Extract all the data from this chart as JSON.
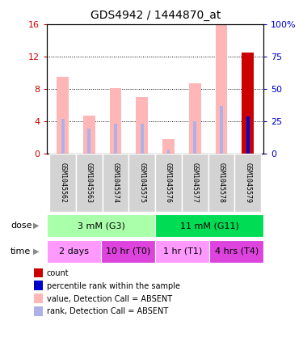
{
  "title": "GDS4942 / 1444870_at",
  "samples": [
    "GSM1045562",
    "GSM1045563",
    "GSM1045574",
    "GSM1045575",
    "GSM1045576",
    "GSM1045577",
    "GSM1045578",
    "GSM1045579"
  ],
  "pink_values": [
    9.5,
    4.7,
    8.1,
    7.0,
    1.8,
    8.7,
    16.0,
    0.0
  ],
  "blue_rank_values": [
    4.3,
    3.1,
    3.7,
    3.7,
    0.55,
    4.0,
    5.9,
    0.0
  ],
  "red_count_value": 12.5,
  "red_count_index": 7,
  "blue_percentile_value": 4.6,
  "blue_percentile_index": 7,
  "ylim_left": [
    0,
    16
  ],
  "ylim_right": [
    0,
    100
  ],
  "yticks_left": [
    0,
    4,
    8,
    12,
    16
  ],
  "yticks_right": [
    0,
    25,
    50,
    75,
    100
  ],
  "ytick_labels_right": [
    "0",
    "25",
    "50",
    "75",
    "100%"
  ],
  "dose_groups": [
    {
      "label": "3 mM (G3)",
      "start": 0,
      "end": 4,
      "color": "#aaffaa"
    },
    {
      "label": "11 mM (G11)",
      "start": 4,
      "end": 8,
      "color": "#00dd55"
    }
  ],
  "time_groups": [
    {
      "label": "2 days",
      "start": 0,
      "end": 2,
      "color": "#ff99ff"
    },
    {
      "label": "10 hr (T0)",
      "start": 2,
      "end": 4,
      "color": "#dd44dd"
    },
    {
      "label": "1 hr (T1)",
      "start": 4,
      "end": 6,
      "color": "#ff99ff"
    },
    {
      "label": "4 hrs (T4)",
      "start": 6,
      "end": 8,
      "color": "#dd44dd"
    }
  ],
  "legend_items": [
    {
      "color": "#cc0000",
      "label": "count"
    },
    {
      "color": "#0000cc",
      "label": "percentile rank within the sample"
    },
    {
      "color": "#ffb6b6",
      "label": "value, Detection Call = ABSENT"
    },
    {
      "color": "#b0b0e8",
      "label": "rank, Detection Call = ABSENT"
    }
  ],
  "pink_bar_width": 0.45,
  "blue_bar_width": 0.12,
  "pink_color": "#ffb6b6",
  "blue_color": "#b0b0e8",
  "red_color": "#cc0000",
  "dark_blue_color": "#0000cc",
  "bg_color": "#ffffff",
  "tick_color_left": "#cc0000",
  "tick_color_right": "#0000cc",
  "plot_bg_color": "#ffffff",
  "label_bg_color": "#d3d3d3"
}
